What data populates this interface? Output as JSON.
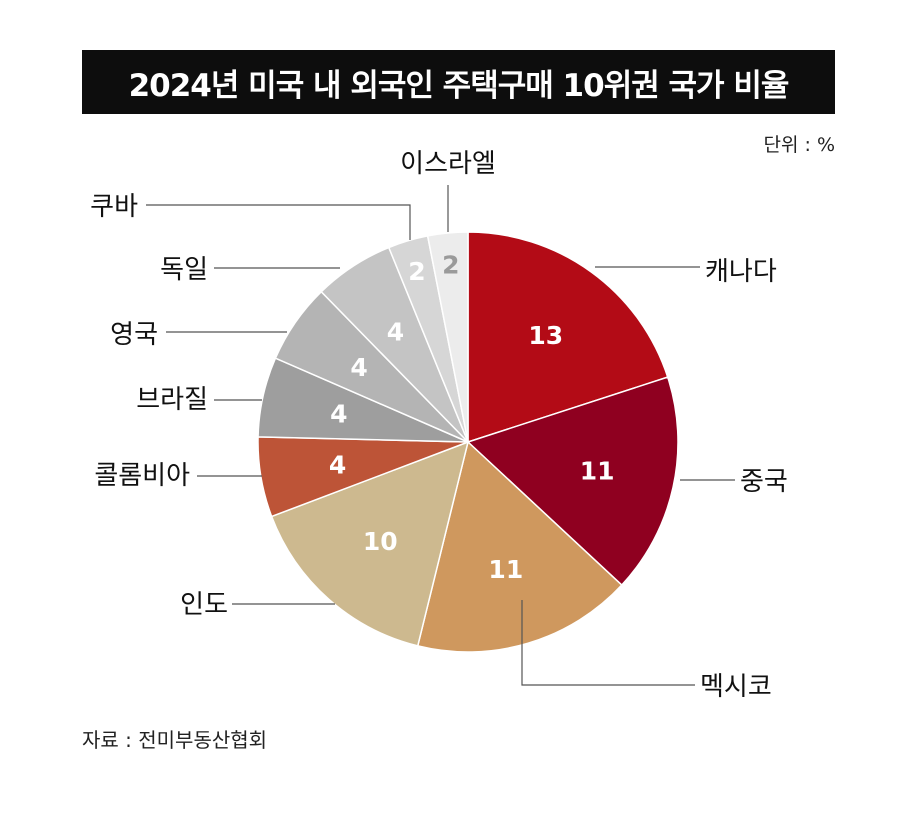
{
  "title": "2024년 미국 내 외국인 주택구매 10위권 국가 비율",
  "unit": "단위 : %",
  "source": "자료 : 전미부동산협회",
  "chart_data": {
    "type": "pie",
    "title": "2024년 미국 내 외국인 주택구매 10위권 국가 비율",
    "unit": "%",
    "categories": [
      "캐나다",
      "중국",
      "멕시코",
      "인도",
      "콜롬비아",
      "브라질",
      "영국",
      "독일",
      "쿠바",
      "이스라엘"
    ],
    "values": [
      13,
      11,
      11,
      10,
      4,
      4,
      4,
      4,
      2,
      2
    ],
    "colors": [
      "#b30b16",
      "#8f0020",
      "#cf985e",
      "#cdb98f",
      "#bd5437",
      "#9e9e9e",
      "#b4b4b4",
      "#c4c4c4",
      "#d6d6d6",
      "#ececec"
    ],
    "value_label_colors": [
      "#ffffff",
      "#ffffff",
      "#ffffff",
      "#ffffff",
      "#ffffff",
      "#ffffff",
      "#ffffff",
      "#ffffff",
      "#ffffff",
      "#9a9a9a"
    ]
  }
}
